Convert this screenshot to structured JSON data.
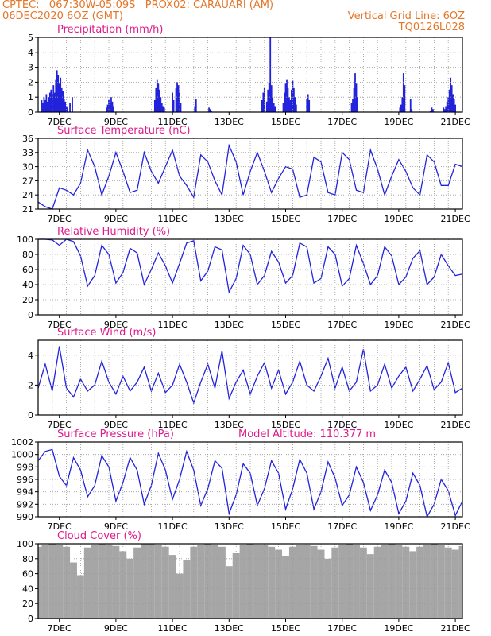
{
  "header": {
    "line1_left": "CPTEC:   067:30W-05:09S   PROX02: CARAUARI (AM)",
    "line2_left": "06DEC2020 6OZ (GMT)",
    "line2_right": "Vertical Grid Line: 6OZ",
    "line3_right": "TQ0126L028",
    "color": "#e2772a"
  },
  "colors": {
    "title": "#e01a8c",
    "series": "#2222dd",
    "grid": "#9a9a9a",
    "cloud": "#a6a6a6"
  },
  "x_dates": [
    "7DEC",
    "9DEC",
    "11DEC",
    "13DEC",
    "15DEC",
    "17DEC",
    "19DEC",
    "21DEC"
  ],
  "chart_data": [
    {
      "type": "bar",
      "title": "Precipitation (mm/h)",
      "ylim": [
        0,
        5
      ],
      "yticks": [
        0,
        1,
        2,
        3,
        4,
        5
      ],
      "x_range_hours": [
        0,
        360
      ],
      "x_hours": [
        3,
        4,
        5,
        6,
        7,
        8,
        9,
        10,
        11,
        12,
        13,
        14,
        15,
        16,
        17,
        18,
        19,
        20,
        21,
        22,
        23,
        24,
        25,
        27,
        29,
        58,
        59,
        60,
        61,
        62,
        63,
        64,
        99,
        100,
        101,
        102,
        103,
        104,
        105,
        106,
        107,
        114,
        115,
        117,
        118,
        119,
        120,
        121,
        133,
        134,
        145,
        146,
        147,
        190,
        191,
        192,
        194,
        195,
        196,
        197,
        198,
        199,
        200,
        201,
        208,
        209,
        210,
        211,
        212,
        213,
        214,
        215,
        216,
        217,
        218,
        219,
        228,
        229,
        230,
        266,
        267,
        268,
        269,
        270,
        271,
        307,
        308,
        309,
        310,
        311,
        316,
        317,
        333,
        334,
        335,
        344,
        345,
        346,
        347,
        348,
        349,
        350,
        351,
        352,
        353,
        354
      ],
      "values": [
        0.8,
        0.6,
        1.0,
        0.8,
        1.2,
        0.7,
        1.0,
        1.3,
        1.5,
        1.2,
        1.8,
        1.3,
        2.2,
        2.8,
        2.5,
        1.9,
        2.3,
        1.6,
        1.4,
        0.9,
        0.7,
        0.4,
        0.3,
        0.6,
        1.0,
        0.3,
        0.5,
        0.8,
        0.6,
        1.0,
        0.7,
        0.4,
        0.8,
        1.6,
        2.2,
        1.9,
        1.5,
        1.0,
        0.6,
        0.4,
        0.3,
        1.3,
        0.8,
        1.6,
        2.0,
        1.8,
        1.3,
        0.6,
        0.4,
        0.9,
        0.3,
        0.2,
        0.1,
        0.8,
        1.3,
        1.6,
        0.7,
        1.5,
        2.0,
        5.0,
        1.8,
        1.0,
        0.6,
        0.4,
        0.6,
        1.3,
        1.9,
        2.2,
        1.6,
        1.0,
        0.8,
        1.5,
        2.1,
        1.6,
        1.0,
        0.5,
        0.9,
        1.2,
        0.8,
        0.6,
        0.9,
        1.6,
        2.6,
        1.9,
        1.0,
        0.3,
        0.5,
        1.0,
        2.6,
        1.8,
        0.9,
        0.2,
        0.1,
        0.3,
        0.2,
        0.3,
        0.2,
        0.4,
        0.7,
        1.0,
        1.5,
        2.3,
        1.8,
        1.2,
        0.9,
        0.5
      ]
    },
    {
      "type": "line",
      "title": "Surface Temperature (nC)",
      "ylim": [
        21,
        36
      ],
      "yticks": [
        21,
        24,
        27,
        30,
        33,
        36
      ],
      "x_range_hours": [
        0,
        360
      ],
      "x_hours": [
        0,
        6,
        12,
        18,
        24,
        30,
        36,
        42,
        48,
        54,
        60,
        66,
        72,
        78,
        84,
        90,
        96,
        102,
        108,
        114,
        120,
        126,
        132,
        138,
        144,
        150,
        156,
        162,
        168,
        174,
        180,
        186,
        192,
        198,
        204,
        210,
        216,
        222,
        228,
        234,
        240,
        246,
        252,
        258,
        264,
        270,
        276,
        282,
        288,
        294,
        300,
        306,
        312,
        318,
        324,
        330,
        336,
        342,
        348,
        354,
        360
      ],
      "values": [
        22.5,
        21.5,
        21.0,
        25.5,
        25.0,
        24.0,
        26.5,
        33.5,
        30.0,
        24.0,
        28.0,
        33.0,
        29.0,
        24.5,
        25.0,
        33.0,
        29.0,
        26.5,
        30.0,
        33.5,
        28.0,
        26.0,
        23.5,
        32.5,
        31.0,
        27.0,
        24.0,
        34.5,
        31.0,
        24.0,
        29.0,
        33.0,
        29.0,
        24.5,
        27.5,
        30.0,
        29.5,
        23.5,
        24.0,
        32.0,
        31.0,
        24.5,
        24.0,
        33.0,
        31.5,
        25.0,
        24.5,
        33.5,
        29.5,
        24.0,
        28.0,
        31.5,
        29.0,
        25.5,
        24.0,
        32.5,
        31.0,
        26.0,
        26.0,
        30.5,
        30.0
      ]
    },
    {
      "type": "line",
      "title": "Relative Humidity (%)",
      "ylim": [
        0,
        100
      ],
      "yticks": [
        0,
        20,
        40,
        60,
        80,
        100
      ],
      "x_range_hours": [
        0,
        360
      ],
      "x_hours": [
        0,
        6,
        12,
        18,
        24,
        30,
        36,
        42,
        48,
        54,
        60,
        66,
        72,
        78,
        84,
        90,
        96,
        102,
        108,
        114,
        120,
        126,
        132,
        138,
        144,
        150,
        156,
        162,
        168,
        174,
        180,
        186,
        192,
        198,
        204,
        210,
        216,
        222,
        228,
        234,
        240,
        246,
        252,
        258,
        264,
        270,
        276,
        282,
        288,
        294,
        300,
        306,
        312,
        318,
        324,
        330,
        336,
        342,
        348,
        354,
        360
      ],
      "values": [
        100,
        100,
        99,
        92,
        100,
        97,
        78,
        38,
        52,
        92,
        80,
        42,
        56,
        88,
        82,
        40,
        60,
        82,
        65,
        42,
        68,
        95,
        98,
        45,
        58,
        90,
        86,
        30,
        48,
        92,
        80,
        40,
        52,
        84,
        70,
        42,
        52,
        95,
        90,
        42,
        48,
        90,
        80,
        38,
        48,
        92,
        68,
        40,
        52,
        90,
        78,
        40,
        50,
        75,
        85,
        40,
        50,
        80,
        65,
        52,
        54
      ]
    },
    {
      "type": "line",
      "title": "Surface Wind (m/s)",
      "ylim": [
        0,
        5
      ],
      "yticks": [
        0,
        2,
        4
      ],
      "x_range_hours": [
        0,
        360
      ],
      "x_hours": [
        0,
        6,
        12,
        18,
        24,
        30,
        36,
        42,
        48,
        54,
        60,
        66,
        72,
        78,
        84,
        90,
        96,
        102,
        108,
        114,
        120,
        126,
        132,
        138,
        144,
        150,
        156,
        162,
        168,
        174,
        180,
        186,
        192,
        198,
        204,
        210,
        216,
        222,
        228,
        234,
        240,
        246,
        252,
        258,
        264,
        270,
        276,
        282,
        288,
        294,
        300,
        306,
        312,
        318,
        324,
        330,
        336,
        342,
        348,
        354,
        360
      ],
      "values": [
        1.8,
        3.4,
        1.6,
        4.6,
        1.8,
        1.2,
        2.4,
        1.6,
        2.0,
        3.6,
        2.2,
        1.4,
        2.6,
        1.6,
        2.2,
        3.2,
        1.6,
        2.8,
        1.5,
        2.0,
        3.4,
        2.2,
        0.8,
        2.2,
        3.4,
        1.8,
        4.3,
        1.1,
        2.2,
        3.0,
        1.4,
        2.6,
        3.5,
        1.8,
        3.0,
        1.4,
        2.2,
        3.6,
        2.0,
        1.6,
        2.6,
        3.8,
        1.8,
        3.2,
        1.6,
        2.2,
        4.4,
        1.6,
        2.0,
        3.4,
        1.8,
        2.6,
        3.2,
        1.6,
        2.4,
        3.3,
        1.7,
        2.2,
        3.5,
        1.5,
        1.8
      ]
    },
    {
      "type": "line",
      "title": "Surface Pressure (hPa)",
      "annotation": "Model Altitude: 110.377  m",
      "ylim": [
        990,
        1002
      ],
      "yticks": [
        990,
        992,
        994,
        996,
        998,
        1000,
        1002
      ],
      "x_range_hours": [
        0,
        360
      ],
      "x_hours": [
        0,
        6,
        12,
        18,
        24,
        30,
        36,
        42,
        48,
        54,
        60,
        66,
        72,
        78,
        84,
        90,
        96,
        102,
        108,
        114,
        120,
        126,
        132,
        138,
        144,
        150,
        156,
        162,
        168,
        174,
        180,
        186,
        192,
        198,
        204,
        210,
        216,
        222,
        228,
        234,
        240,
        246,
        252,
        258,
        264,
        270,
        276,
        282,
        288,
        294,
        300,
        306,
        312,
        318,
        324,
        330,
        336,
        342,
        348,
        354,
        360
      ],
      "values": [
        999.0,
        1000.5,
        1000.8,
        996.5,
        995.0,
        999.5,
        997.5,
        993.2,
        995.0,
        999.8,
        998.0,
        992.5,
        995.5,
        999.5,
        997.5,
        992.0,
        995.0,
        1000.2,
        997.5,
        992.8,
        996.0,
        1000.5,
        997.5,
        991.8,
        994.5,
        999.0,
        997.8,
        990.5,
        993.5,
        998.5,
        997.0,
        991.8,
        994.5,
        999.0,
        997.0,
        991.2,
        994.5,
        999.2,
        997.0,
        991.2,
        994.0,
        998.8,
        996.2,
        991.8,
        993.5,
        998.0,
        995.5,
        991.0,
        993.5,
        997.5,
        995.5,
        990.5,
        992.5,
        997.0,
        995.0,
        989.6,
        992.0,
        996.0,
        994.2,
        990.2,
        992.5
      ]
    },
    {
      "type": "bar",
      "title": "Cloud Cover (%)",
      "ylim": [
        0,
        100
      ],
      "yticks": [
        0,
        20,
        40,
        60,
        80,
        100
      ],
      "x_range_hours": [
        0,
        360
      ],
      "x_hours": [
        0,
        6,
        12,
        18,
        24,
        30,
        36,
        42,
        48,
        54,
        60,
        66,
        72,
        78,
        84,
        90,
        96,
        102,
        108,
        114,
        120,
        126,
        132,
        138,
        144,
        150,
        156,
        162,
        168,
        174,
        180,
        186,
        192,
        198,
        204,
        210,
        216,
        222,
        228,
        234,
        240,
        246,
        252,
        258,
        264,
        270,
        276,
        282,
        288,
        294,
        300,
        306,
        312,
        318,
        324,
        330,
        336,
        342,
        348,
        354,
        360
      ],
      "values": [
        96,
        98,
        100,
        99,
        96,
        75,
        58,
        95,
        98,
        100,
        99,
        97,
        90,
        80,
        95,
        100,
        100,
        98,
        96,
        85,
        60,
        78,
        96,
        98,
        100,
        99,
        96,
        70,
        88,
        98,
        100,
        99,
        98,
        96,
        92,
        84,
        96,
        98,
        99,
        97,
        92,
        80,
        95,
        99,
        100,
        98,
        95,
        86,
        96,
        99,
        100,
        98,
        96,
        90,
        96,
        99,
        100,
        98,
        95,
        92,
        97
      ]
    }
  ]
}
